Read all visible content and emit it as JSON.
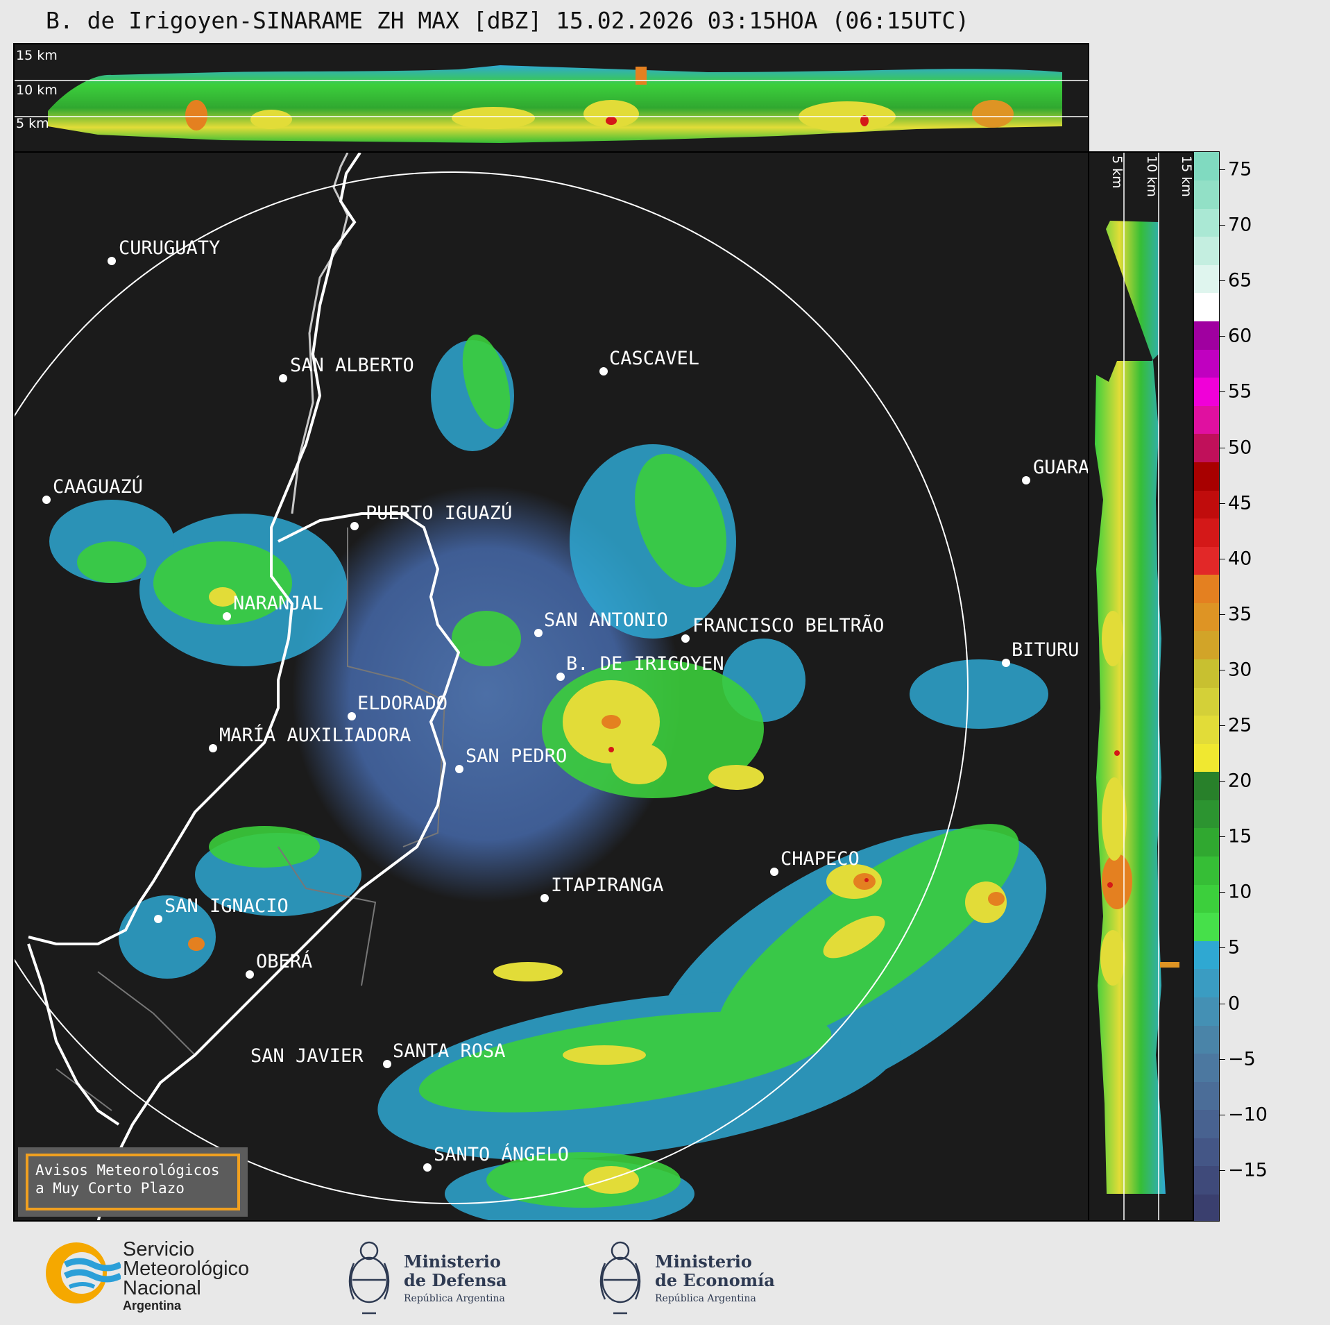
{
  "title": "B. de Irigoyen-SINARAME ZH MAX [dBZ] 15.02.2026 03:15HOA (06:15UTC)",
  "height_labels": {
    "h15": "15 km",
    "h10": "10 km",
    "h5": "5 km"
  },
  "side_labels": {
    "h5": "5 km",
    "h10": "10 km",
    "h15": "15 km"
  },
  "places": [
    {
      "name": "CURUGUATY"
    },
    {
      "name": "SAN ALBERTO"
    },
    {
      "name": "CASCAVEL"
    },
    {
      "name": "CAAGUAZÚ"
    },
    {
      "name": "GUARA"
    },
    {
      "name": "PUERTO IGUAZÚ"
    },
    {
      "name": "NARANJAL"
    },
    {
      "name": "SAN ANTONIO"
    },
    {
      "name": "FRANCISCO BELTRÃO"
    },
    {
      "name": "B. DE IRIGOYEN"
    },
    {
      "name": "BITURU"
    },
    {
      "name": "ELDORADO"
    },
    {
      "name": "MARÍA AUXILIADORA"
    },
    {
      "name": "SAN PEDRO"
    },
    {
      "name": "CHAPECO"
    },
    {
      "name": "ITAPIRANGA"
    },
    {
      "name": "SAN IGNACIO"
    },
    {
      "name": "OBERÁ"
    },
    {
      "name": "SAN JAVIER"
    },
    {
      "name": "SANTA ROSA"
    },
    {
      "name": "SANTO ÁNGELO"
    }
  ],
  "colorbar": {
    "unit": "dBZ",
    "ticks": [
      "75",
      "70",
      "65",
      "60",
      "55",
      "50",
      "45",
      "40",
      "35",
      "30",
      "25",
      "20",
      "15",
      "10",
      "5",
      "0",
      "−5",
      "−10",
      "−15"
    ],
    "colors": [
      "#3a3f6e",
      "#3f4a7a",
      "#445686",
      "#486290",
      "#4b6d98",
      "#4c78a0",
      "#4a84a8",
      "#4490b4",
      "#3a9cc2",
      "#2fa8d2",
      "#46e04a",
      "#3ccf3c",
      "#36be36",
      "#30a830",
      "#2c9430",
      "#28802a",
      "#f0e830",
      "#e2dc38",
      "#d4d038",
      "#c8c030",
      "#d2a428",
      "#de9424",
      "#e48020",
      "#e22828",
      "#d41818",
      "#c00c0c",
      "#a80000",
      "#c0105a",
      "#e010a0",
      "#f000d8",
      "#c000c0",
      "#a000a0",
      "#ffffff",
      "#dff5ee",
      "#c4eee0",
      "#aae8d4",
      "#92e0c6",
      "#80dac0"
    ]
  },
  "warning": {
    "line1": "Avisos Meteorológicos",
    "line2": "a Muy Corto Plazo"
  },
  "logos": {
    "smn": {
      "line1": "Servicio",
      "line2": "Meteorológico",
      "line3": "Nacional",
      "line4": "Argentina"
    },
    "defensa": {
      "line1": "Ministerio",
      "line2": "de Defensa",
      "line3": "República Argentina"
    },
    "economia": {
      "line1": "Ministerio",
      "line2": "de Economía",
      "line3": "República Argentina"
    }
  },
  "colors": {
    "background": "#1b1b1b",
    "page": "#e8e8e8",
    "warning_border": "#f0a020"
  }
}
